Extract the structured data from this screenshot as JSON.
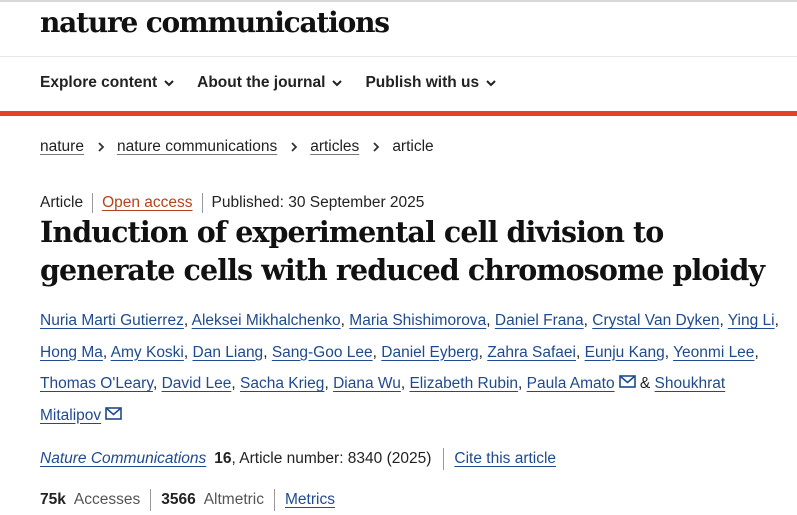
{
  "brand": "nature communications",
  "nav": [
    {
      "label": "Explore content"
    },
    {
      "label": "About the journal"
    },
    {
      "label": "Publish with us"
    }
  ],
  "breadcrumb": [
    "nature",
    "nature communications",
    "articles",
    "article"
  ],
  "meta": {
    "type": "Article",
    "access": "Open access",
    "published": "Published: 30 September 2025"
  },
  "title": "Induction of experimental cell division to generate cells with reduced chromosome ploidy",
  "authors": [
    "Nuria Marti Gutierrez",
    "Aleksei Mikhalchenko",
    "Maria Shishimorova",
    "Daniel Frana",
    "Crystal Van Dyken",
    "Ying Li",
    "Hong Ma",
    "Amy Koski",
    "Dan Liang",
    "Sang-Goo Lee",
    "Daniel Eyberg",
    "Zahra Safaei",
    "Eunju Kang",
    "Yeonmi Lee",
    "Thomas O'Leary",
    "David Lee",
    "Sacha Krieg",
    "Diana Wu",
    "Elizabeth Rubin",
    "Paula Amato",
    "Shoukhrat Mitalipov"
  ],
  "author_separator": ", ",
  "author_conjunction": " & ",
  "journal": {
    "name": "Nature Communications",
    "volume": "16",
    "article_number": ", Article number: 8340 (2025)",
    "cite_label": "Cite this article"
  },
  "stats": {
    "accesses_value": "75k",
    "accesses_label": "Accesses",
    "altmetric_value": "3566",
    "altmetric_label": "Altmetric",
    "metrics_label": "Metrics"
  },
  "colors": {
    "accent_red": "#e4402a",
    "link_blue": "#1f4a8f",
    "open_access": "#b5431c"
  }
}
